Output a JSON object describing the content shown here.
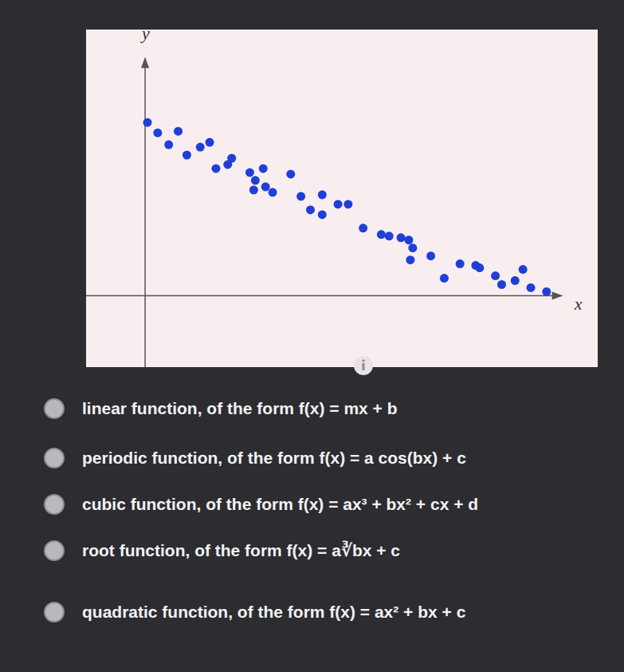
{
  "chart_data": {
    "type": "scatter",
    "x_label": "x",
    "y_label": "y",
    "x": [
      0.06,
      0.32,
      0.84,
      0.6,
      1.06,
      1.4,
      1.64,
      1.8,
      2.1,
      2.2,
      2.66,
      2.8,
      3.0,
      3.06,
      2.76,
      3.24,
      3.7,
      3.96,
      4.2,
      4.5,
      4.5,
      4.9,
      5.16,
      5.54,
      6.0,
      6.2,
      6.5,
      6.7,
      6.8,
      6.74,
      7.26,
      7.6,
      8.0,
      8.4,
      8.5,
      8.9,
      9.06,
      9.4,
      9.6,
      9.8,
      10.2
    ],
    "values": [
      4.36,
      4.1,
      4.14,
      3.8,
      3.54,
      3.74,
      3.86,
      3.2,
      3.3,
      3.46,
      3.1,
      2.9,
      3.2,
      2.74,
      2.66,
      2.6,
      3.06,
      2.5,
      2.16,
      2.54,
      2.04,
      2.3,
      2.3,
      1.7,
      1.54,
      1.5,
      1.46,
      1.4,
      1.2,
      0.9,
      1.0,
      0.44,
      0.8,
      0.76,
      0.7,
      0.5,
      0.28,
      0.38,
      0.66,
      0.2,
      0.1
    ],
    "color": "#1f3fd8",
    "marker": "circle",
    "xlim": [
      -1.5,
      11.5
    ],
    "ylim": [
      -1.8,
      6.7
    ],
    "xticks": [],
    "yticks": [],
    "tick_labels": false
  },
  "choices": [
    "linear function, of the form f(x) = mx + b",
    "periodic function, of the form f(x) = a cos(bx) + c",
    "cubic function, of the form f(x) = ax³ + bx² + cx + d",
    "root function, of the form f(x) = a∛bx + c",
    "quadratic function, of the form f(x) = ax² + bx + c"
  ]
}
